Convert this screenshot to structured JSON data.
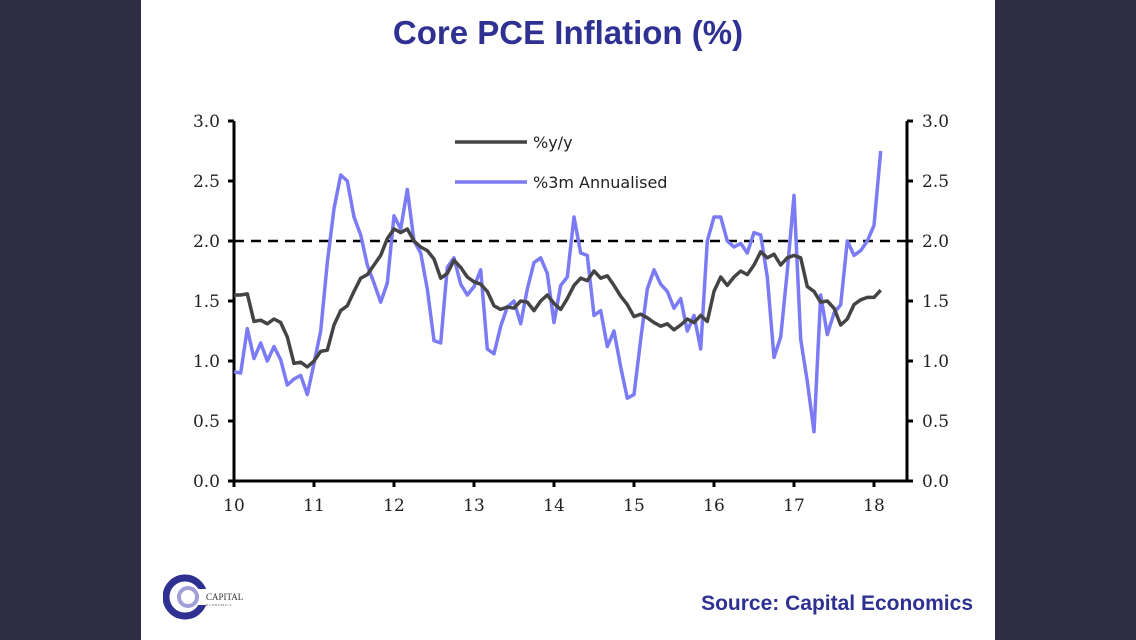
{
  "slide": {
    "title": "Core PCE Inflation (%)",
    "source": "Source: Capital Economics",
    "logo": {
      "line1": "CAPITAL",
      "line2": "ECONOMICS"
    }
  },
  "colors": {
    "background": "#2e2d43",
    "title": "#2e3192",
    "yy_line": "#444444",
    "m3_line": "#7b7bf5",
    "reference": "#000000"
  },
  "chart_data": {
    "type": "line",
    "title": "Core PCE Inflation (%)",
    "xlabel": "",
    "ylabel": "",
    "x_start": "2010-01",
    "x_frequency": "monthly",
    "x_tick_labels": [
      "10",
      "11",
      "12",
      "13",
      "14",
      "15",
      "16",
      "17",
      "18"
    ],
    "y_tick_labels": [
      "0.0",
      "0.5",
      "1.0",
      "1.5",
      "2.0",
      "2.5",
      "3.0"
    ],
    "ylim": [
      0,
      3.0
    ],
    "xlim": [
      10,
      18.5
    ],
    "grid": false,
    "dual_axis": true,
    "legend_position": "top-center",
    "reference_line": {
      "y": 2.0,
      "style": "dashed"
    },
    "series": [
      {
        "name": "%y/y",
        "values": [
          1.55,
          1.55,
          1.56,
          1.33,
          1.34,
          1.31,
          1.35,
          1.32,
          1.2,
          0.98,
          0.99,
          0.95,
          1.0,
          1.08,
          1.09,
          1.3,
          1.42,
          1.46,
          1.58,
          1.69,
          1.72,
          1.8,
          1.88,
          2.02,
          2.1,
          2.07,
          2.1,
          2.0,
          1.95,
          1.92,
          1.85,
          1.69,
          1.73,
          1.84,
          1.78,
          1.7,
          1.66,
          1.64,
          1.58,
          1.46,
          1.43,
          1.45,
          1.44,
          1.5,
          1.49,
          1.42,
          1.5,
          1.55,
          1.48,
          1.43,
          1.52,
          1.63,
          1.69,
          1.67,
          1.75,
          1.69,
          1.71,
          1.63,
          1.54,
          1.47,
          1.37,
          1.39,
          1.36,
          1.32,
          1.29,
          1.31,
          1.26,
          1.3,
          1.35,
          1.32,
          1.38,
          1.33,
          1.58,
          1.7,
          1.63,
          1.7,
          1.75,
          1.72,
          1.8,
          1.91,
          1.86,
          1.89,
          1.8,
          1.86,
          1.88,
          1.86,
          1.62,
          1.58,
          1.49,
          1.5,
          1.44,
          1.3,
          1.35,
          1.47,
          1.51,
          1.53,
          1.53,
          1.59
        ]
      },
      {
        "name": "%3m Annualised",
        "values": [
          0.91,
          0.9,
          1.27,
          1.02,
          1.15,
          1.0,
          1.12,
          1.01,
          0.8,
          0.85,
          0.88,
          0.72,
          0.98,
          1.25,
          1.82,
          2.27,
          2.55,
          2.5,
          2.2,
          2.05,
          1.8,
          1.65,
          1.49,
          1.65,
          2.21,
          2.1,
          2.43,
          2.0,
          1.9,
          1.6,
          1.17,
          1.15,
          1.78,
          1.86,
          1.64,
          1.55,
          1.62,
          1.76,
          1.1,
          1.06,
          1.29,
          1.45,
          1.5,
          1.31,
          1.6,
          1.82,
          1.86,
          1.73,
          1.32,
          1.63,
          1.7,
          2.2,
          1.9,
          1.88,
          1.38,
          1.42,
          1.12,
          1.25,
          0.95,
          0.69,
          0.72,
          1.18,
          1.6,
          1.76,
          1.64,
          1.58,
          1.44,
          1.52,
          1.25,
          1.38,
          1.1,
          2.0,
          2.2,
          2.2,
          2.0,
          1.95,
          1.98,
          1.9,
          2.07,
          2.05,
          1.7,
          1.03,
          1.2,
          1.75,
          2.38,
          1.18,
          0.83,
          0.41,
          1.55,
          1.22,
          1.4,
          1.47,
          2.0,
          1.88,
          1.92,
          2.0,
          2.13,
          2.75
        ]
      }
    ]
  }
}
